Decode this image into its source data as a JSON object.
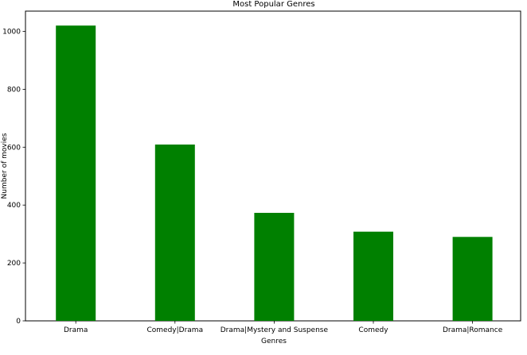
{
  "chart_data": {
    "type": "bar",
    "title": "Most Popular Genres",
    "xlabel": "Genres",
    "ylabel": "Number of movies",
    "categories": [
      "Drama",
      "Comedy|Drama",
      "Drama|Mystery and Suspense",
      "Comedy",
      "Drama|Romance"
    ],
    "values": [
      1020,
      609,
      373,
      308,
      290
    ],
    "ylim": [
      0,
      1070
    ],
    "yticks": [
      0,
      200,
      400,
      600,
      800,
      1000
    ],
    "grid": false,
    "bar_color": "#008000"
  }
}
